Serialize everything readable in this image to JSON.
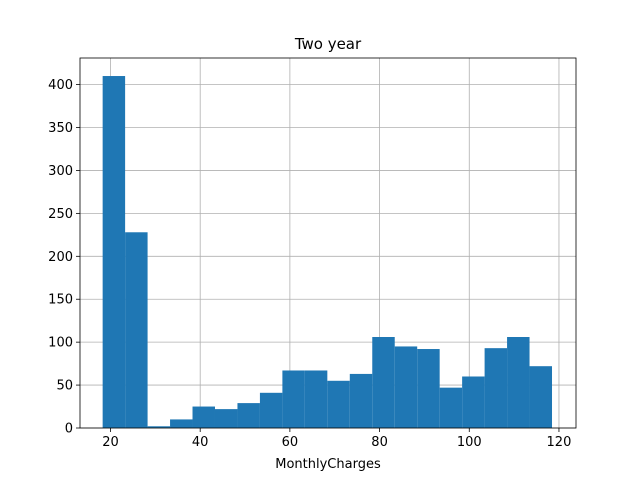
{
  "chart_data": {
    "type": "bar",
    "title": "Two year",
    "xlabel": "MonthlyCharges",
    "ylabel": "",
    "xlim": [
      13.2,
      123.8
    ],
    "ylim": [
      0,
      431
    ],
    "xticks": [
      20,
      40,
      60,
      80,
      100,
      120
    ],
    "yticks": [
      0,
      50,
      100,
      150,
      200,
      250,
      300,
      350,
      400
    ],
    "grid": true,
    "bar_color": "#1f77b4",
    "bins": [
      {
        "start": 18.25,
        "end": 23.26,
        "count": 410
      },
      {
        "start": 23.26,
        "end": 28.27,
        "count": 228
      },
      {
        "start": 28.27,
        "end": 33.28,
        "count": 2
      },
      {
        "start": 33.28,
        "end": 38.29,
        "count": 10
      },
      {
        "start": 38.29,
        "end": 43.3,
        "count": 25
      },
      {
        "start": 43.3,
        "end": 48.31,
        "count": 22
      },
      {
        "start": 48.31,
        "end": 53.32,
        "count": 29
      },
      {
        "start": 53.32,
        "end": 58.33,
        "count": 41
      },
      {
        "start": 58.33,
        "end": 63.34,
        "count": 67
      },
      {
        "start": 63.34,
        "end": 68.35,
        "count": 67
      },
      {
        "start": 68.35,
        "end": 73.36,
        "count": 55
      },
      {
        "start": 73.36,
        "end": 78.37,
        "count": 63
      },
      {
        "start": 78.37,
        "end": 83.38,
        "count": 106
      },
      {
        "start": 83.38,
        "end": 88.39,
        "count": 95
      },
      {
        "start": 88.39,
        "end": 93.4,
        "count": 92
      },
      {
        "start": 93.4,
        "end": 98.41,
        "count": 47
      },
      {
        "start": 98.41,
        "end": 103.42,
        "count": 60
      },
      {
        "start": 103.42,
        "end": 108.43,
        "count": 93
      },
      {
        "start": 108.43,
        "end": 113.44,
        "count": 106
      },
      {
        "start": 113.44,
        "end": 118.45,
        "count": 72
      }
    ]
  }
}
